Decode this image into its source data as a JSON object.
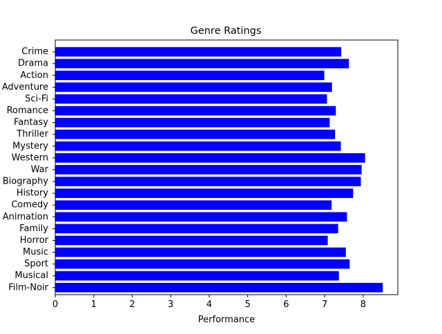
{
  "chart_data": {
    "type": "bar",
    "orientation": "horizontal",
    "title": "Genre Ratings",
    "xlabel": "Performance",
    "ylabel": "",
    "xlim": [
      0,
      8.9
    ],
    "xticks": [
      0,
      1,
      2,
      3,
      4,
      5,
      6,
      7,
      8
    ],
    "grid": false,
    "bar_color": "#0000ff",
    "categories": [
      "Crime",
      "Drama",
      "Action",
      "Adventure",
      "Sci-Fi",
      "Romance",
      "Fantasy",
      "Thriller",
      "Mystery",
      "Western",
      "War",
      "Biography",
      "History",
      "Comedy",
      "Animation",
      "Family",
      "Horror",
      "Music",
      "Sport",
      "Musical",
      "Film-Noir"
    ],
    "values": [
      7.43,
      7.63,
      6.99,
      7.19,
      7.06,
      7.29,
      7.13,
      7.27,
      7.42,
      8.05,
      7.96,
      7.94,
      7.74,
      7.18,
      7.58,
      7.35,
      7.08,
      7.55,
      7.65,
      7.37,
      8.51
    ]
  }
}
